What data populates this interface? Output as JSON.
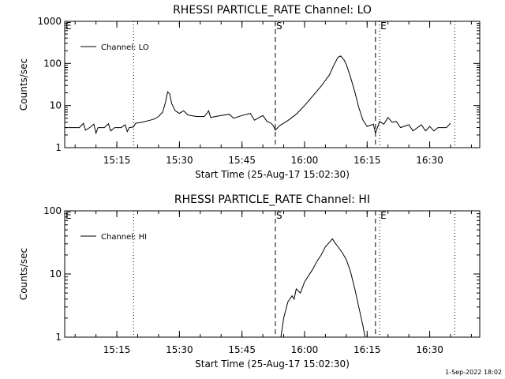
{
  "chart_data": [
    {
      "type": "line",
      "title": "RHESSI PARTICLE_RATE Channel: LO",
      "xlabel": "Start Time (25-Aug-17 15:02:30)",
      "ylabel": "Counts/sec",
      "y_scale": "log",
      "ylim": [
        1,
        1000
      ],
      "y_ticks": [
        "1",
        "10",
        "100",
        "1000"
      ],
      "xlim": [
        "15:02:30",
        "16:42:00"
      ],
      "x_ticks": [
        "15:15",
        "15:30",
        "15:45",
        "16:00",
        "16:15",
        "16:30"
      ],
      "grid": false,
      "legend_position": "top-left",
      "markers": [
        {
          "label": "",
          "time": "15:19:00",
          "style": "dotted"
        },
        {
          "label": "S",
          "time": "15:53:00",
          "style": "dashed"
        },
        {
          "label": "",
          "time": "16:17:00",
          "style": "dashed"
        },
        {
          "label": "E",
          "time": "16:18:00",
          "style": "dotted"
        },
        {
          "label": "",
          "time": "16:36:00",
          "style": "dotted"
        }
      ],
      "corner_label": "E",
      "series": [
        {
          "name": "Channel: LO",
          "points": [
            [
              "15:02:30",
              3
            ],
            [
              "15:06:00",
              3
            ],
            [
              "15:07:00",
              3.8
            ],
            [
              "15:07:30",
              2.6
            ],
            [
              "15:08:30",
              3
            ],
            [
              "15:09:30",
              3.6
            ],
            [
              "15:10:00",
              2.2
            ],
            [
              "15:10:30",
              3
            ],
            [
              "15:12:00",
              3
            ],
            [
              "15:13:00",
              3.7
            ],
            [
              "15:13:30",
              2.5
            ],
            [
              "15:14:30",
              3
            ],
            [
              "15:16:00",
              3
            ],
            [
              "15:17:00",
              3.5
            ],
            [
              "15:17:30",
              2.4
            ],
            [
              "15:18:00",
              3
            ],
            [
              "15:19:00",
              3.1
            ],
            [
              "15:19:30",
              3.8
            ],
            [
              "15:21:00",
              4
            ],
            [
              "15:23:00",
              4.5
            ],
            [
              "15:24:00",
              4.8
            ],
            [
              "15:25:00",
              5.5
            ],
            [
              "15:26:00",
              7
            ],
            [
              "15:26:40",
              12
            ],
            [
              "15:27:10",
              21
            ],
            [
              "15:27:40",
              19
            ],
            [
              "15:28:10",
              11
            ],
            [
              "15:29:00",
              7.5
            ],
            [
              "15:30:00",
              6.5
            ],
            [
              "15:31:00",
              7.5
            ],
            [
              "15:32:00",
              6
            ],
            [
              "15:34:00",
              5.5
            ],
            [
              "15:36:00",
              5.5
            ],
            [
              "15:37:00",
              7.5
            ],
            [
              "15:37:30",
              5.2
            ],
            [
              "15:40:00",
              5.8
            ],
            [
              "15:42:00",
              6.2
            ],
            [
              "15:43:00",
              5
            ],
            [
              "15:45:00",
              5.8
            ],
            [
              "15:47:00",
              6.5
            ],
            [
              "15:48:00",
              4.5
            ],
            [
              "15:50:00",
              5.8
            ],
            [
              "15:51:00",
              4.2
            ],
            [
              "15:52:00",
              3.8
            ],
            [
              "15:52:30",
              3.3
            ],
            [
              "15:53:00",
              2.6
            ],
            [
              "15:54:00",
              3.3
            ],
            [
              "15:56:00",
              4.4
            ],
            [
              "15:58:00",
              6.2
            ],
            [
              "16:00:00",
              10
            ],
            [
              "16:02:00",
              17
            ],
            [
              "16:04:00",
              29
            ],
            [
              "16:06:00",
              54
            ],
            [
              "16:07:00",
              90
            ],
            [
              "16:08:00",
              140
            ],
            [
              "16:08:40",
              150
            ],
            [
              "16:09:30",
              120
            ],
            [
              "16:10:00",
              95
            ],
            [
              "16:11:00",
              48
            ],
            [
              "16:12:00",
              22
            ],
            [
              "16:13:00",
              9
            ],
            [
              "16:14:00",
              4.5
            ],
            [
              "16:15:00",
              3.2
            ],
            [
              "16:16:30",
              3.6
            ],
            [
              "16:17:00",
              2.2
            ],
            [
              "16:18:00",
              4.2
            ],
            [
              "16:19:00",
              3.6
            ],
            [
              "16:20:00",
              5.2
            ],
            [
              "16:21:00",
              4
            ],
            [
              "16:22:00",
              4.2
            ],
            [
              "16:23:00",
              3
            ],
            [
              "16:25:00",
              3.5
            ],
            [
              "16:26:00",
              2.5
            ],
            [
              "16:28:00",
              3.5
            ],
            [
              "16:29:00",
              2.5
            ],
            [
              "16:30:00",
              3.2
            ],
            [
              "16:31:00",
              2.5
            ],
            [
              "16:32:00",
              3
            ],
            [
              "16:34:00",
              3
            ],
            [
              "16:35:00",
              3.8
            ]
          ]
        }
      ]
    },
    {
      "type": "line",
      "title": "RHESSI PARTICLE_RATE Channel: HI",
      "xlabel": "Start Time (25-Aug-17 15:02:30)",
      "ylabel": "Counts/sec",
      "y_scale": "log",
      "ylim": [
        1,
        100
      ],
      "y_ticks": [
        "1",
        "10",
        "100"
      ],
      "xlim": [
        "15:02:30",
        "16:42:00"
      ],
      "x_ticks": [
        "15:15",
        "15:30",
        "15:45",
        "16:00",
        "16:15",
        "16:30"
      ],
      "grid": false,
      "legend_position": "top-left",
      "markers": [
        {
          "label": "",
          "time": "15:19:00",
          "style": "dotted"
        },
        {
          "label": "S",
          "time": "15:53:00",
          "style": "dashed"
        },
        {
          "label": "",
          "time": "16:17:00",
          "style": "dashed"
        },
        {
          "label": "E",
          "time": "16:18:00",
          "style": "dotted"
        },
        {
          "label": "",
          "time": "16:36:00",
          "style": "dotted"
        }
      ],
      "corner_label": "E",
      "series": [
        {
          "name": "Channel: HI",
          "points": [
            [
              "15:54:20",
              1
            ],
            [
              "15:55:00",
              2
            ],
            [
              "15:56:00",
              3.6
            ],
            [
              "15:57:00",
              4.5
            ],
            [
              "15:57:30",
              4
            ],
            [
              "15:58:00",
              5.8
            ],
            [
              "15:59:00",
              5
            ],
            [
              "16:00:00",
              7.5
            ],
            [
              "16:01:00",
              9.5
            ],
            [
              "16:02:00",
              12
            ],
            [
              "16:03:00",
              16
            ],
            [
              "16:04:00",
              20
            ],
            [
              "16:05:00",
              27
            ],
            [
              "16:06:00",
              32
            ],
            [
              "16:06:40",
              36
            ],
            [
              "16:07:20",
              31
            ],
            [
              "16:08:00",
              27
            ],
            [
              "16:09:00",
              22
            ],
            [
              "16:10:00",
              17
            ],
            [
              "16:11:00",
              11
            ],
            [
              "16:12:00",
              6
            ],
            [
              "16:13:00",
              3
            ],
            [
              "16:14:00",
              1.5
            ],
            [
              "16:14:30",
              1
            ]
          ]
        }
      ]
    }
  ],
  "footer": "1-Sep-2022 18:02"
}
